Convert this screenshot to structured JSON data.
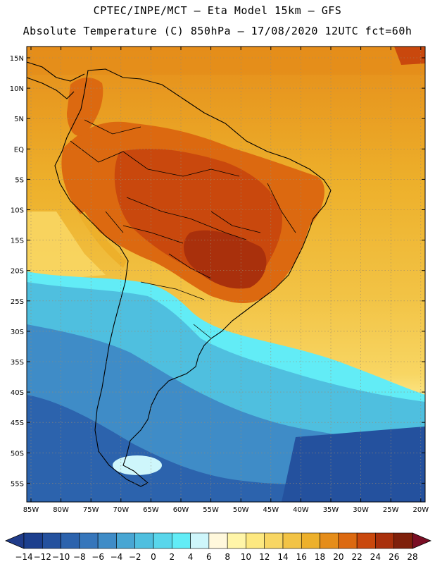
{
  "title_line1": "CPTEC/INPE/MCT –  Eta Model 15km – GFS",
  "title_line2": "Absolute Temperature (C) 850hPa – 17/08/2020 12UTC fct=60h",
  "lat_labels": [
    "15N",
    "10N",
    "5N",
    "EQ",
    "5S",
    "10S",
    "15S",
    "20S",
    "25S",
    "30S",
    "35S",
    "40S",
    "45S",
    "50S",
    "55S"
  ],
  "lon_labels": [
    "85W",
    "80W",
    "75W",
    "70W",
    "65W",
    "60W",
    "55W",
    "50W",
    "45W",
    "40W",
    "35W",
    "30W",
    "25W",
    "20W"
  ],
  "colorbar": {
    "labels": [
      "-14",
      "-12",
      "-10",
      "-8",
      "-6",
      "-4",
      "-2",
      "0",
      "2",
      "4",
      "6",
      "8",
      "10",
      "12",
      "14",
      "16",
      "18",
      "20",
      "22",
      "24",
      "26",
      "28"
    ],
    "colors": [
      "#1c3f8e",
      "#24519e",
      "#2c63ad",
      "#3676bb",
      "#3f8cc7",
      "#48a6d3",
      "#4fbfdf",
      "#59d6eb",
      "#62ecf6",
      "#cef6fb",
      "#fff8dc",
      "#fff5a8",
      "#fde880",
      "#f8d663",
      "#f2c345",
      "#edb02b",
      "#e58d1a",
      "#dc6910",
      "#c9480d",
      "#a9300c",
      "#7f200b"
    ],
    "under_color": "#203c8a",
    "over_color": "#7a0e24"
  },
  "legend_colors": {
    "land_hot": "#c9480d",
    "land_warm": "#e07a1a",
    "ocean_tropical": "#edb02b",
    "cold_south": "#2c63ad",
    "coastline": "#000000"
  }
}
